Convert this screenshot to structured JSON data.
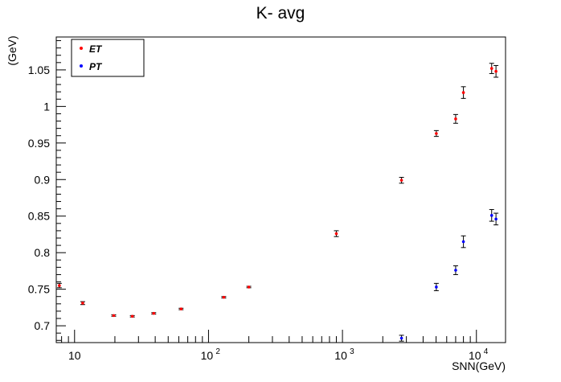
{
  "chart_data": {
    "type": "scatter",
    "title": "K- avg",
    "xlabel": "SNN(GeV)",
    "ylabel": "(GeV)",
    "x_scale": "log",
    "xlim": [
      7.3,
      16500
    ],
    "ylim": [
      0.677,
      1.095
    ],
    "x_tick_labels": [
      {
        "value": 10,
        "base": "10",
        "exp": ""
      },
      {
        "value": 100,
        "base": "10",
        "exp": "2"
      },
      {
        "value": 1000,
        "base": "10",
        "exp": "3"
      },
      {
        "value": 10000,
        "base": "10",
        "exp": "4"
      }
    ],
    "y_ticks": [
      0.7,
      0.75,
      0.8,
      0.85,
      0.9,
      0.95,
      1,
      1.05
    ],
    "y_tick_labels": [
      "0.7",
      "0.75",
      "0.8",
      "0.85",
      "0.9",
      "0.95",
      "1",
      "1.05"
    ],
    "legend": {
      "position": "top-left",
      "entries": [
        {
          "label": "ET",
          "color": "#ff0000"
        },
        {
          "label": "PT",
          "color": "#0000ff"
        }
      ]
    },
    "series": [
      {
        "name": "ET",
        "color": "#ff0000",
        "x": [
          7.7,
          11.5,
          19.6,
          27,
          39,
          62.4,
          130,
          200,
          900,
          2760,
          5020,
          7000,
          8000,
          13000,
          14000
        ],
        "y": [
          0.755,
          0.731,
          0.714,
          0.713,
          0.717,
          0.723,
          0.739,
          0.753,
          0.826,
          0.899,
          0.963,
          0.983,
          1.019,
          1.052,
          1.048
        ],
        "err": [
          0.003,
          0.002,
          0.001,
          0.001,
          0.001,
          0.001,
          0.001,
          0.001,
          0.004,
          0.004,
          0.004,
          0.006,
          0.008,
          0.007,
          0.008
        ]
      },
      {
        "name": "PT",
        "color": "#0000ff",
        "x": [
          2760,
          5020,
          7000,
          8000,
          13000,
          14000
        ],
        "y": [
          0.683,
          0.753,
          0.776,
          0.815,
          0.851,
          0.846
        ],
        "err": [
          0.004,
          0.005,
          0.006,
          0.008,
          0.008,
          0.008
        ]
      }
    ]
  }
}
